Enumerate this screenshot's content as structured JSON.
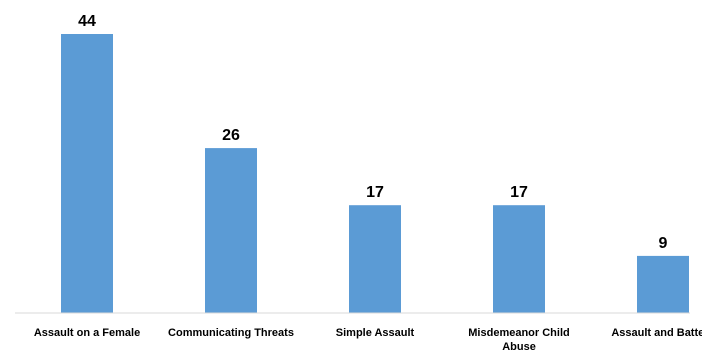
{
  "chart_data": {
    "type": "bar",
    "categories": [
      "Assault on a Female",
      "Communicating Threats",
      "Simple Assault",
      "Misdemeanor Child Abuse",
      "Assault and Battery"
    ],
    "values": [
      44,
      26,
      17,
      17,
      9
    ],
    "title": "",
    "xlabel": "",
    "ylabel": "",
    "ylim": [
      0,
      44
    ],
    "grid": false,
    "legend": "none",
    "data_labels": true,
    "bar_color": "#5b9bd5",
    "baseline_color": "#d9d9d9"
  }
}
